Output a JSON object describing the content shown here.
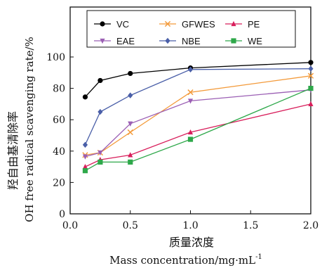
{
  "chart_data": {
    "type": "line",
    "xlabel_cn": "质量浓度",
    "xlabel_en": "Mass concentration/mg·mL",
    "xlabel_sup": "-1",
    "ylabel_cn": "羟自由基清除率",
    "ylabel_en": "OH free radical scavenging rate/%",
    "xlim": [
      0.0,
      2.0
    ],
    "ylim": [
      0,
      100
    ],
    "xticks": [
      "0.0",
      "0.5",
      "1.0",
      "1.5",
      "2.0"
    ],
    "yticks": [
      "0",
      "20",
      "40",
      "60",
      "80",
      "100"
    ],
    "legend_position": "top",
    "x": [
      0.125,
      0.25,
      0.5,
      1.0,
      2.0
    ],
    "series": [
      {
        "name": "VC",
        "color": "#000000",
        "marker": "circle",
        "values": [
          74.5,
          85,
          89.5,
          93,
          96.5
        ]
      },
      {
        "name": "GFWES",
        "color": "#f39a3a",
        "marker": "x",
        "values": [
          37.5,
          39,
          52,
          77.5,
          88
        ]
      },
      {
        "name": "PE",
        "color": "#d81e5b",
        "marker": "triangle",
        "values": [
          30,
          34.5,
          37.5,
          52,
          70
        ]
      },
      {
        "name": "EAE",
        "color": "#9b5fb4",
        "marker": "tri-down",
        "values": [
          36.5,
          39,
          57.5,
          72,
          79
        ]
      },
      {
        "name": "NBE",
        "color": "#4a5fa8",
        "marker": "diamond",
        "values": [
          44,
          65,
          75.5,
          92,
          92.5
        ]
      },
      {
        "name": "WE",
        "color": "#2ea84a",
        "marker": "square",
        "values": [
          27.5,
          33,
          33,
          47.5,
          80
        ]
      }
    ]
  }
}
